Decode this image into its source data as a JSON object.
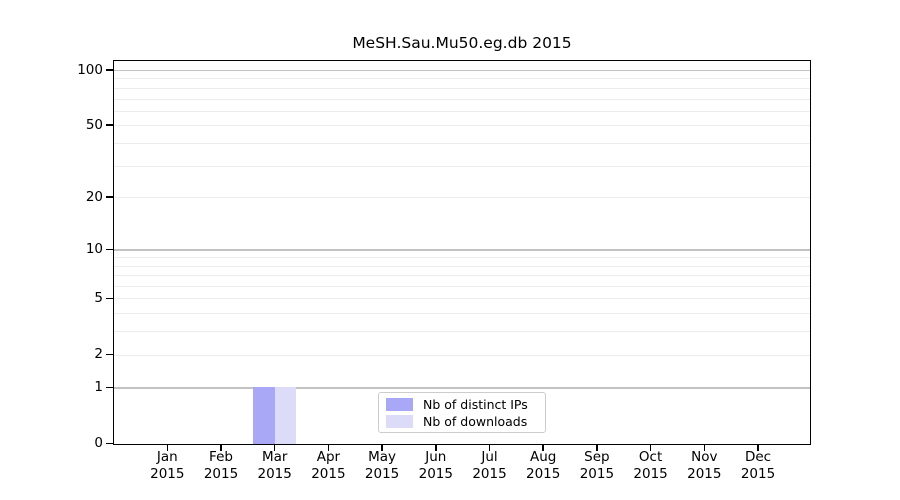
{
  "title": "MeSH.Sau.Mu50.eg.db 2015",
  "chart_data": {
    "type": "bar",
    "title": "MeSH.Sau.Mu50.eg.db 2015",
    "x_tick_months": [
      "Jan",
      "Feb",
      "Mar",
      "Apr",
      "May",
      "Jun",
      "Jul",
      "Aug",
      "Sep",
      "Oct",
      "Nov",
      "Dec"
    ],
    "x_tick_year": "2015",
    "categories": [
      "Jan 2015",
      "Feb 2015",
      "Mar 2015",
      "Apr 2015",
      "May 2015",
      "Jun 2015",
      "Jul 2015",
      "Aug 2015",
      "Sep 2015",
      "Oct 2015",
      "Nov 2015",
      "Dec 2015"
    ],
    "series": [
      {
        "name": "Nb of distinct IPs",
        "color": "#a8a8f6",
        "values": [
          0,
          0,
          1,
          0,
          0,
          0,
          0,
          0,
          0,
          0,
          0,
          0
        ]
      },
      {
        "name": "Nb of downloads",
        "color": "#dcdcf9",
        "values": [
          0,
          0,
          1,
          0,
          0,
          0,
          0,
          0,
          0,
          0,
          0,
          0
        ]
      }
    ],
    "y_ticks": [
      0,
      1,
      2,
      5,
      10,
      20,
      50,
      100
    ],
    "y_scale": "log10(1+value)",
    "ylim": [
      0,
      112
    ],
    "xlabel": "",
    "ylabel": "",
    "grid": {
      "orientation": "horizontal",
      "major_values": [
        1,
        10,
        100
      ],
      "minor_values": [
        2,
        3,
        4,
        5,
        6,
        7,
        8,
        9,
        20,
        30,
        40,
        50,
        60,
        70,
        80,
        90
      ],
      "major_color": "#c2c2c2",
      "minor_color": "#ededed"
    },
    "legend": {
      "position": "lower center inside",
      "entries": [
        "Nb of distinct IPs",
        "Nb of downloads"
      ]
    },
    "axis_color": "#000000",
    "legend_border_color": "#cccccc"
  }
}
